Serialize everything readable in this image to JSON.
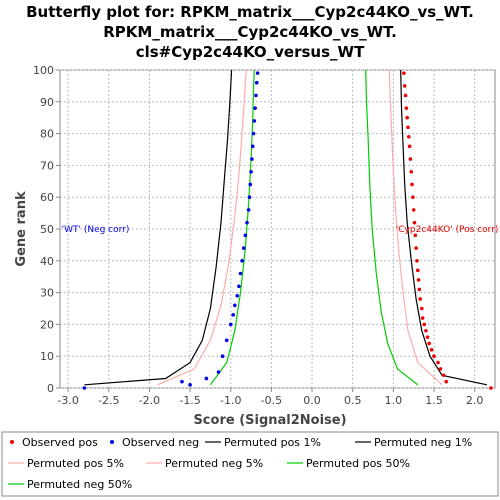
{
  "chart_data": {
    "type": "scatter",
    "title_lines": [
      "Butterfly plot for: RPKM_matrix___Cyp2c44KO_vs_WT.",
      "RPKM_matrix___Cyp2c44KO_vs_WT.",
      "cls#Cyp2c44KO_versus_WT"
    ],
    "xlabel": "Score (Signal2Noise)",
    "ylabel": "Gene rank",
    "xlim": [
      -3.1,
      2.25
    ],
    "ylim": [
      0,
      100
    ],
    "x_ticks": [
      "-3.0",
      "-2.5",
      "-2.0",
      "-1.5",
      "-1.0",
      "-0.5",
      "0.0",
      "0.5",
      "1.0",
      "1.5",
      "2.0"
    ],
    "x_tick_values": [
      -3.0,
      -2.5,
      -2.0,
      -1.5,
      -1.0,
      -0.5,
      0.0,
      0.5,
      1.0,
      1.5,
      2.0
    ],
    "y_ticks": [
      "0",
      "10",
      "20",
      "30",
      "40",
      "50",
      "60",
      "70",
      "80",
      "90",
      "100"
    ],
    "y_tick_values": [
      0,
      10,
      20,
      30,
      40,
      50,
      60,
      70,
      80,
      90,
      100
    ],
    "grid": true,
    "annotations": [
      {
        "text": "'WT' (Neg corr)",
        "color": "#0000ee",
        "x": -3.08,
        "y": 50
      },
      {
        "text": "'Cyp2c44KO' (Pos corr)",
        "color": "#dd0000",
        "x": 1.03,
        "y": 50
      }
    ],
    "series": [
      {
        "name": "Observed pos",
        "kind": "points",
        "color": "#ee0000",
        "x": [
          2.2,
          1.65,
          1.62,
          1.58,
          1.55,
          1.5,
          1.47,
          1.44,
          1.42,
          1.4,
          1.38,
          1.36,
          1.35,
          1.33,
          1.32,
          1.31,
          1.3,
          1.29,
          1.28,
          1.27,
          1.26,
          1.25,
          1.24,
          1.23,
          1.22,
          1.21,
          1.2,
          1.19,
          1.18,
          1.17,
          1.16,
          1.15,
          1.14,
          1.13
        ],
        "y": [
          0,
          2,
          4,
          6,
          8,
          10,
          12,
          14,
          16,
          18,
          20,
          22,
          25,
          28,
          31,
          34,
          37,
          40,
          44,
          48,
          52,
          56,
          60,
          64,
          68,
          72,
          76,
          79,
          82,
          85,
          88,
          92,
          95,
          99
        ]
      },
      {
        "name": "Observed neg",
        "kind": "points",
        "color": "#0000ee",
        "x": [
          -2.8,
          -1.5,
          -1.6,
          -1.3,
          -1.15,
          -1.1,
          -1.05,
          -1.0,
          -0.97,
          -0.95,
          -0.92,
          -0.9,
          -0.88,
          -0.86,
          -0.84,
          -0.82,
          -0.8,
          -0.78,
          -0.77,
          -0.76,
          -0.75,
          -0.74,
          -0.73,
          -0.72,
          -0.71,
          -0.7,
          -0.69,
          -0.68,
          -0.67
        ],
        "y": [
          0,
          1,
          2,
          3,
          5,
          10,
          15,
          20,
          23,
          26,
          29,
          32,
          36,
          40,
          44,
          48,
          52,
          56,
          60,
          64,
          68,
          72,
          76,
          80,
          84,
          88,
          92,
          96,
          99
        ]
      },
      {
        "name": "Permuted pos 1%",
        "kind": "line",
        "color": "#000000",
        "x": [
          2.15,
          1.6,
          1.45,
          1.35,
          1.28,
          1.22,
          1.17,
          1.14,
          1.12,
          1.1,
          1.09
        ],
        "y": [
          1,
          4,
          10,
          18,
          28,
          40,
          52,
          64,
          76,
          88,
          100
        ]
      },
      {
        "name": "Permuted neg 1%",
        "kind": "line",
        "color": "#000000",
        "x": [
          -2.8,
          -1.8,
          -1.5,
          -1.35,
          -1.25,
          -1.18,
          -1.12,
          -1.08,
          -1.04,
          -1.01,
          -0.99
        ],
        "y": [
          1,
          3,
          8,
          15,
          25,
          38,
          52,
          65,
          78,
          90,
          100
        ]
      },
      {
        "name": "Permuted pos 5%",
        "kind": "line",
        "color": "#ffaaaa",
        "x": [
          1.6,
          1.3,
          1.18,
          1.12,
          1.07,
          1.03,
          1.0,
          0.98,
          0.96,
          0.95
        ],
        "y": [
          1,
          8,
          18,
          30,
          42,
          55,
          68,
          80,
          92,
          100
        ]
      },
      {
        "name": "Permuted neg 5%",
        "kind": "line",
        "color": "#ffaaaa",
        "x": [
          -1.9,
          -1.45,
          -1.25,
          -1.12,
          -1.02,
          -0.95,
          -0.9,
          -0.86,
          -0.83,
          -0.81
        ],
        "y": [
          1,
          6,
          15,
          26,
          40,
          54,
          67,
          80,
          92,
          100
        ]
      },
      {
        "name": "Permuted pos 50%",
        "kind": "line",
        "color": "#00cc00",
        "x": [
          1.3,
          1.05,
          0.93,
          0.85,
          0.79,
          0.74,
          0.71,
          0.69,
          0.67,
          0.66
        ],
        "y": [
          1,
          6,
          14,
          24,
          36,
          50,
          64,
          78,
          90,
          100
        ]
      },
      {
        "name": "Permuted neg 50%",
        "kind": "line",
        "color": "#00cc00",
        "x": [
          -1.25,
          -1.05,
          -0.95,
          -0.88,
          -0.82,
          -0.78,
          -0.75,
          -0.73,
          -0.72,
          -0.71
        ],
        "y": [
          1,
          8,
          18,
          30,
          44,
          58,
          72,
          84,
          94,
          100
        ]
      }
    ]
  },
  "legend": {
    "items": [
      {
        "label": "Observed pos",
        "kind": "dot",
        "color": "#ee0000"
      },
      {
        "label": "Observed neg",
        "kind": "dot",
        "color": "#0000ee"
      },
      {
        "label": "Permuted pos 1%",
        "kind": "line",
        "color": "#000000"
      },
      {
        "label": "Permuted neg 1%",
        "kind": "line",
        "color": "#000000"
      },
      {
        "label": "Permuted pos 5%",
        "kind": "line",
        "color": "#ffaaaa"
      },
      {
        "label": "Permuted neg 5%",
        "kind": "line",
        "color": "#ffaaaa"
      },
      {
        "label": "Permuted pos 50%",
        "kind": "line",
        "color": "#00cc00"
      },
      {
        "label": "Permuted neg 50%",
        "kind": "line",
        "color": "#00cc00"
      }
    ]
  }
}
